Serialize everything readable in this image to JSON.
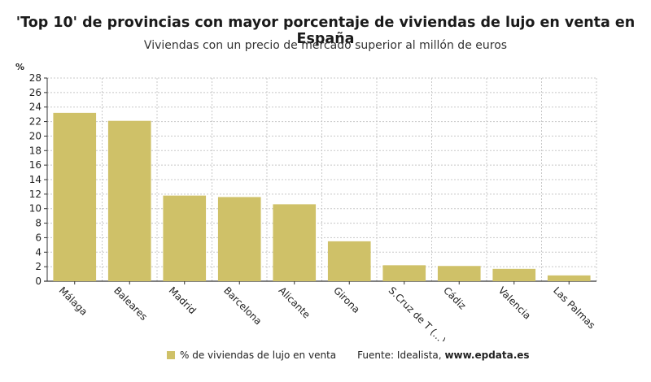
{
  "chart_data": {
    "type": "bar",
    "title": "'Top 10' de provincias con mayor porcentaje de viviendas de lujo en venta en España",
    "subtitle": "Viviendas con un precio de mercado superior al millón de euros",
    "ylabel": "%",
    "xlabel": "",
    "ylim": [
      0,
      28
    ],
    "yticks": [
      0,
      2,
      4,
      6,
      8,
      10,
      12,
      14,
      16,
      18,
      20,
      22,
      24,
      26,
      28
    ],
    "grid": true,
    "legend_position": "bottom",
    "categories": [
      "Málaga",
      "Baleares",
      "Madrid",
      "Barcelona",
      "Alicante",
      "Girona",
      "S.Cruz de T (...)",
      "Cádiz",
      "Valencia",
      "Las Palmas"
    ],
    "series": [
      {
        "name": "% de viviendas de lujo en venta",
        "color": "#cfc168",
        "values": [
          23.2,
          22.1,
          11.8,
          11.6,
          10.6,
          5.5,
          2.2,
          2.1,
          1.7,
          0.8
        ]
      }
    ]
  },
  "source": {
    "label": "Fuente: Idealista,",
    "site": "www.epdata.es"
  }
}
